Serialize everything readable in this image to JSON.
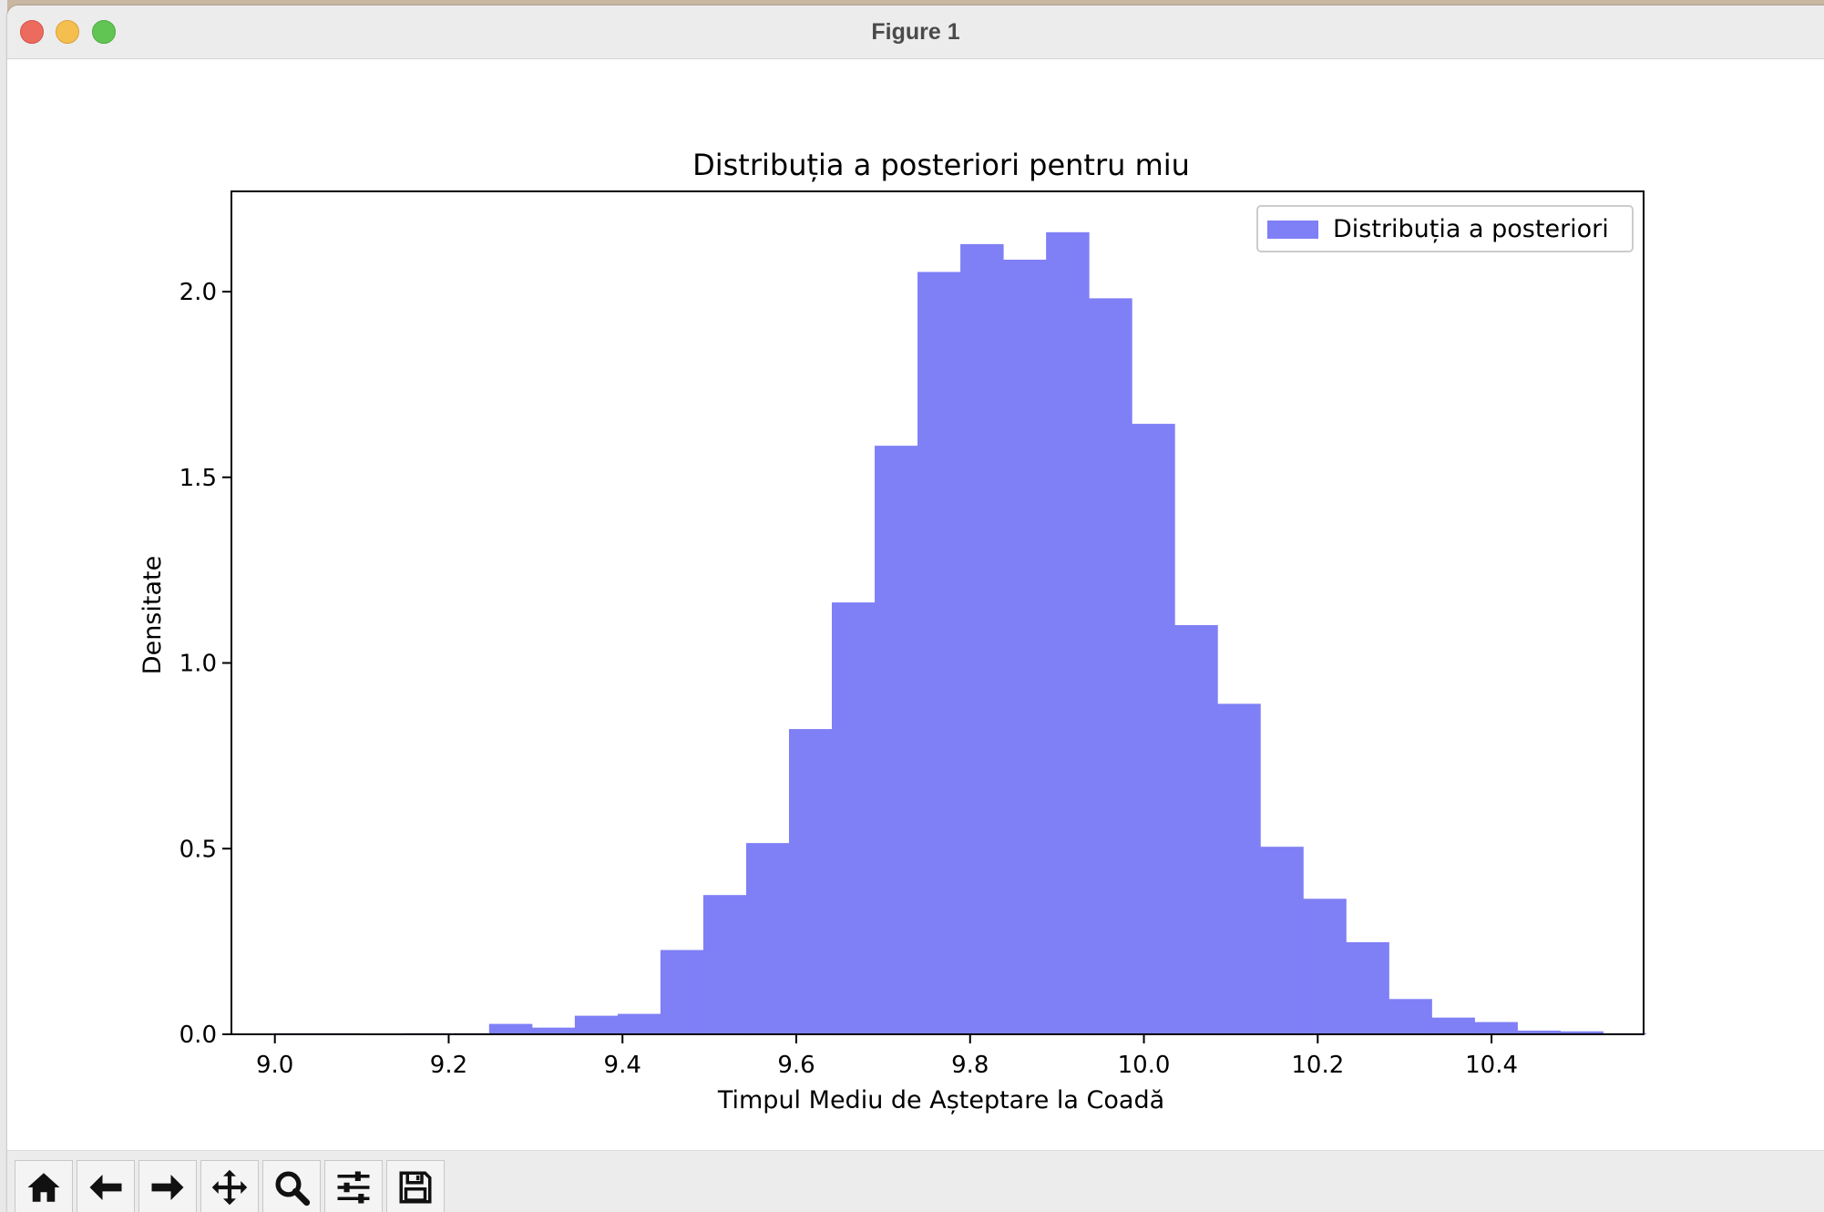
{
  "window": {
    "title": "Figure 1"
  },
  "toolbar": {
    "buttons": [
      {
        "name": "home-button",
        "icon": "home-icon"
      },
      {
        "name": "back-button",
        "icon": "arrow-left-icon"
      },
      {
        "name": "forward-button",
        "icon": "arrow-right-icon"
      },
      {
        "name": "pan-button",
        "icon": "move-icon"
      },
      {
        "name": "zoom-button",
        "icon": "magnifier-icon"
      },
      {
        "name": "configure-subplots-button",
        "icon": "sliders-icon"
      },
      {
        "name": "save-button",
        "icon": "floppy-disk-icon"
      }
    ]
  },
  "chart_data": {
    "type": "bar",
    "title": "Distribuția a posteriori pentru miu",
    "xlabel": "Timpul Mediu de Așteptare la Coadă",
    "ylabel": "Densitate",
    "xlim": [
      8.95,
      10.575
    ],
    "ylim": [
      0,
      2.27
    ],
    "xticks": [
      "9.0",
      "9.2",
      "9.4",
      "9.6",
      "9.8",
      "10.0",
      "10.2",
      "10.4"
    ],
    "xtick_values": [
      9.0,
      9.2,
      9.4,
      9.6,
      9.8,
      10.0,
      10.2,
      10.4
    ],
    "yticks": [
      "0.0",
      "0.5",
      "1.0",
      "1.5",
      "2.0"
    ],
    "ytick_values": [
      0.0,
      0.5,
      1.0,
      1.5,
      2.0
    ],
    "bin_start": 9.0,
    "bin_width": 0.0493,
    "values": [
      0.003,
      0.003,
      0.0,
      0.003,
      0.003,
      0.028,
      0.018,
      0.05,
      0.055,
      0.227,
      0.375,
      0.515,
      0.822,
      1.163,
      1.585,
      2.053,
      2.128,
      2.086,
      2.16,
      1.982,
      1.644,
      1.102,
      0.89,
      0.505,
      0.365,
      0.248,
      0.095,
      0.045,
      0.033,
      0.01,
      0.008,
      0.003
    ],
    "legend": {
      "label": "Distribuția a posteriori",
      "placement": "top-right"
    },
    "color": "#7f7ff6",
    "grid": false
  }
}
